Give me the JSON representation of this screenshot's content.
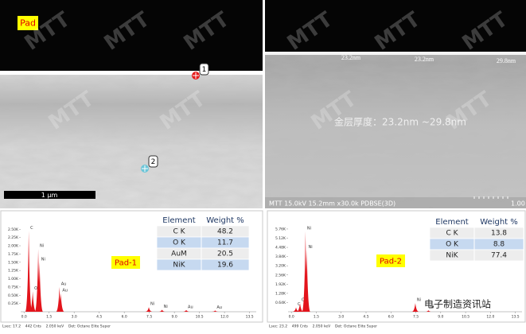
{
  "watermark": "MTT",
  "sem_images": [
    {
      "pad_label": "Pad",
      "markers": [
        "1",
        "2"
      ],
      "scale_bar": "1 μm"
    },
    {
      "thickness_labels": [
        "23.2nm",
        "23.2nm",
        "29.8nm"
      ],
      "caption": "金层厚度：23.2nm ~29.8nm",
      "info_bar": "MTT 15.0kV 15.2mm x30.0k PDBSE(3D)",
      "scale_label": "1.00"
    }
  ],
  "chart_data": [
    {
      "type": "spectrum",
      "sample_label": "Pad-1",
      "color": "#e3141c",
      "xlim": [
        -0.2,
        13.9
      ],
      "xticks": [
        {
          "value": 0,
          "label": "0.0"
        },
        1.5,
        {
          "value": 3,
          "label": "3.0"
        },
        4.5,
        {
          "value": 6,
          "label": "6.0"
        },
        7.5,
        {
          "value": 9,
          "label": "9.0"
        },
        10.5,
        {
          "value": 12,
          "label": "12.0"
        },
        13.5
      ],
      "ylim": [
        0,
        2.7
      ],
      "yticks": [
        {
          "value": 0.25,
          "label": "0.25K"
        },
        {
          "value": 0.5,
          "label": "0.50K"
        },
        {
          "value": 0.75,
          "label": "0.75K"
        },
        {
          "value": 1,
          "label": "1.00K"
        },
        {
          "value": 1.25,
          "label": "1.25K"
        },
        {
          "value": 1.5,
          "label": "1.50K"
        },
        {
          "value": 1.75,
          "label": "1.75K"
        },
        {
          "value": 2,
          "label": "2.00K"
        },
        {
          "value": 2.25,
          "label": "2.25K"
        },
        {
          "value": 2.5,
          "label": "2.50K"
        }
      ],
      "x": [
        0.28,
        0.52,
        0.85,
        0.93,
        2.12,
        2.2,
        7.47,
        8.26,
        9.71,
        11.44
      ],
      "values": [
        2.45,
        0.62,
        1.9,
        1.5,
        0.75,
        0.55,
        0.14,
        0.06,
        0.05,
        0.04
      ],
      "peak_labels": [
        "C",
        "O",
        "Ni",
        "Ni",
        "Au",
        "Au",
        "Ni",
        "Ni",
        "Au",
        "Au"
      ],
      "table": {
        "columns": [
          "Element",
          "Weight %"
        ],
        "rows": [
          [
            "C K",
            48.2
          ],
          [
            "O K",
            11.7
          ],
          [
            "AuM",
            20.5
          ],
          [
            "NiK",
            19.6
          ]
        ]
      },
      "footer": "Lsec: 17.2    442 Cnts    2.050 keV    Det: Octane Elite Super"
    },
    {
      "type": "spectrum",
      "sample_label": "Pad-2",
      "color": "#e3141c",
      "xlim": [
        -0.2,
        13.9
      ],
      "xticks": [
        {
          "value": 0,
          "label": "0.0"
        },
        1.5,
        {
          "value": 3,
          "label": "3.0"
        },
        4.5,
        {
          "value": 6,
          "label": "6.0"
        },
        7.5,
        {
          "value": 9,
          "label": "9.0"
        },
        10.5,
        {
          "value": 12,
          "label": "12.0"
        },
        13.5
      ],
      "ylim": [
        0,
        6.2
      ],
      "yticks": [
        {
          "value": 0.64,
          "label": "0.64K"
        },
        {
          "value": 1.28,
          "label": "1.28K"
        },
        {
          "value": 1.92,
          "label": "1.92K"
        },
        {
          "value": 2.56,
          "label": "2.56K"
        },
        {
          "value": 3.2,
          "label": "3.20K"
        },
        {
          "value": 3.84,
          "label": "3.84K"
        },
        {
          "value": 4.48,
          "label": "4.48K"
        },
        {
          "value": 5.12,
          "label": "5.12K"
        },
        {
          "value": 5.76,
          "label": "5.76K"
        }
      ],
      "x": [
        0.28,
        0.52,
        0.85,
        0.93,
        7.47,
        8.26
      ],
      "values": [
        0.3,
        0.6,
        5.6,
        4.3,
        0.6,
        0.1
      ],
      "peak_labels": [
        "C",
        "O",
        "Ni",
        "Ni",
        "Ni",
        "Ni"
      ],
      "table": {
        "columns": [
          "Element",
          "Weight %"
        ],
        "rows": [
          [
            "C K",
            13.8
          ],
          [
            "O K",
            8.8
          ],
          [
            "NiK",
            77.4
          ]
        ]
      },
      "footer": "Lsec: 23.2    499 Cnts    2.050 keV    Det: Octane Elite Super"
    }
  ],
  "logo_text": "电子制造资讯站"
}
